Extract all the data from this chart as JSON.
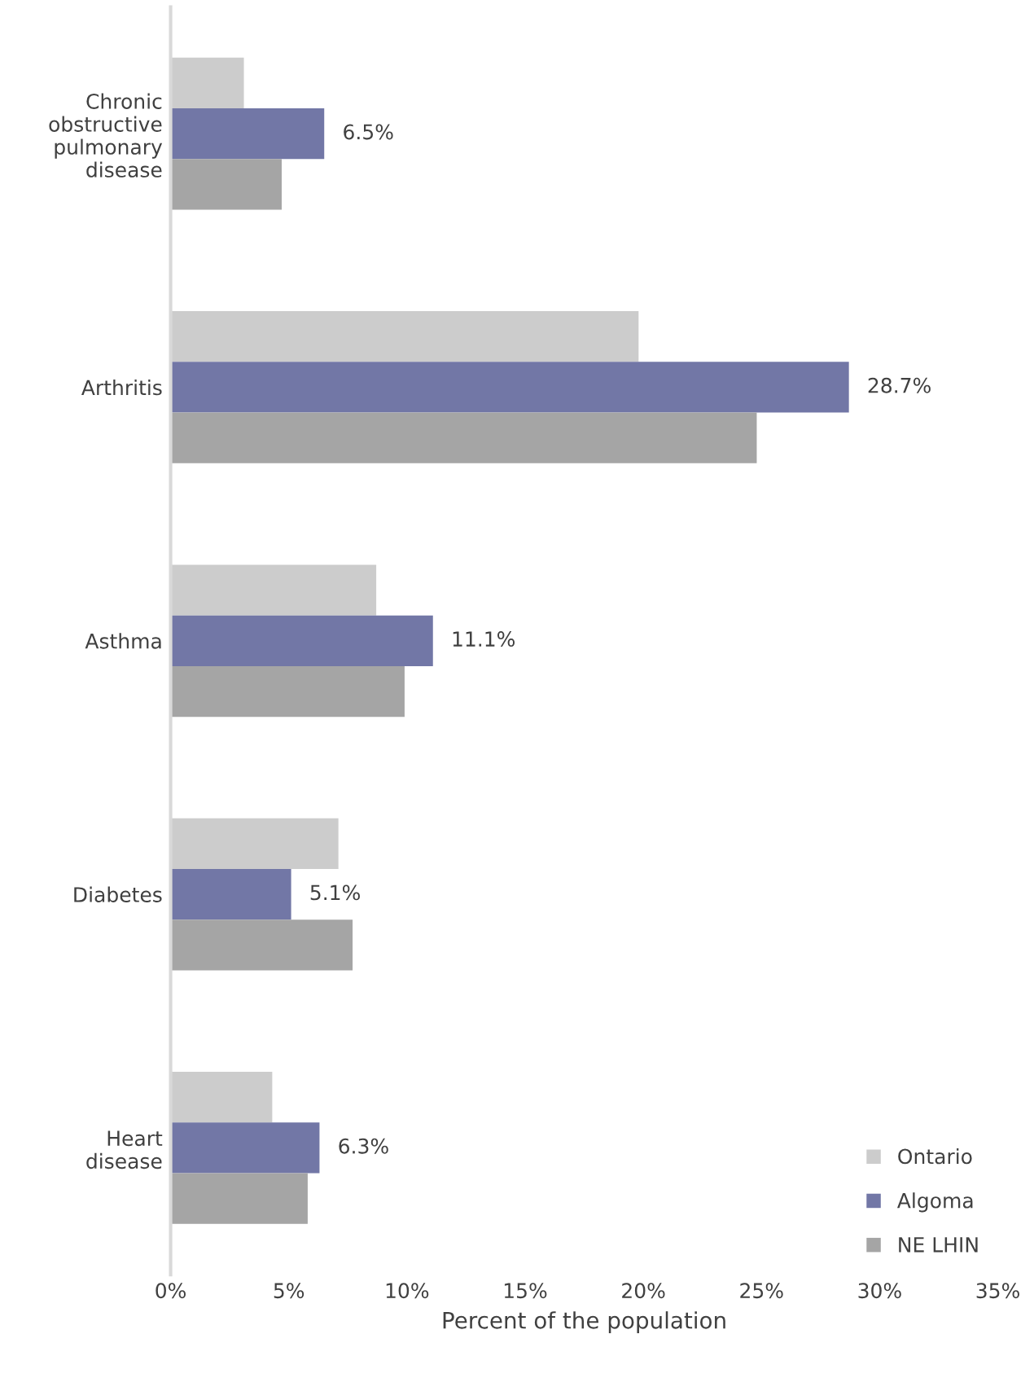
{
  "chart_data": {
    "type": "bar",
    "orientation": "horizontal",
    "xlabel": "Percent of the population",
    "categories": [
      "Chronic\nobstructive\npulmonary\ndisease",
      "Arthritis",
      "Asthma",
      "Diabetes",
      "Heart\ndisease"
    ],
    "series": [
      {
        "name": "Ontario",
        "color": "#cccccc",
        "values": [
          3.1,
          19.8,
          8.7,
          7.1,
          4.3
        ]
      },
      {
        "name": "Algoma",
        "color": "#7277a6",
        "values": [
          6.5,
          28.7,
          11.1,
          5.1,
          6.3
        ],
        "value_labels": [
          "6.5%",
          "28.7%",
          "11.1%",
          "5.1%",
          "6.3%"
        ]
      },
      {
        "name": "NE LHIN",
        "color": "#a5a5a5",
        "values": [
          4.7,
          24.8,
          9.9,
          7.7,
          5.8
        ]
      }
    ],
    "xlim": [
      0,
      35
    ],
    "xticks": [
      {
        "value": 0,
        "label": "0%"
      },
      {
        "value": 5,
        "label": "5%"
      },
      {
        "value": 10,
        "label": "10%"
      },
      {
        "value": 15,
        "label": "15%"
      },
      {
        "value": 20,
        "label": "20%"
      },
      {
        "value": 25,
        "label": "25%"
      },
      {
        "value": 30,
        "label": "30%"
      },
      {
        "value": 35,
        "label": "35%"
      }
    ],
    "grid": false,
    "legend": "bottom right"
  }
}
